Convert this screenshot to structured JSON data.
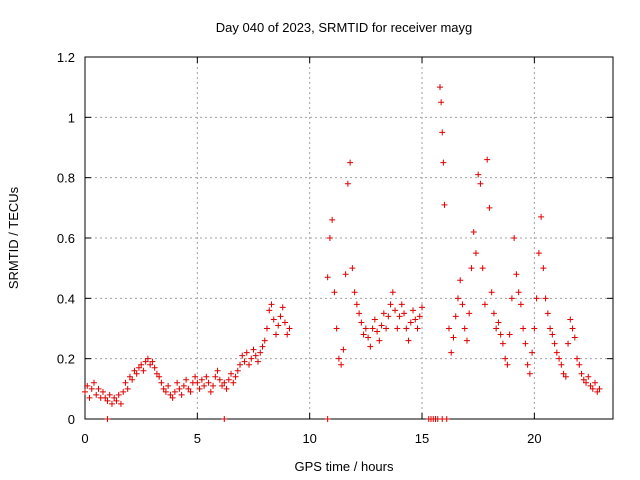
{
  "chart_data": {
    "type": "scatter",
    "title": "Day 040 of 2023, SRMTID for receiver mayg",
    "xlabel": "GPS time / hours",
    "ylabel": "SRMTID / TECUs",
    "xlim": [
      0,
      23.5
    ],
    "ylim": [
      0,
      1.2
    ],
    "xticks": [
      0,
      5,
      10,
      15,
      20
    ],
    "xtick_labels": [
      "0",
      "5",
      "10",
      "15",
      "20"
    ],
    "yticks": [
      0,
      0.2,
      0.4,
      0.6,
      0.8,
      1.0,
      1.2
    ],
    "ytick_labels": [
      "0",
      "0.2",
      "0.4",
      "0.6",
      "0.8",
      "1",
      "1.2"
    ],
    "grid": true,
    "marker": "+",
    "color": "#e00000",
    "series": [
      {
        "name": "SRMTID",
        "points": [
          [
            0.0,
            0.09
          ],
          [
            0.1,
            0.11
          ],
          [
            0.2,
            0.07
          ],
          [
            0.3,
            0.1
          ],
          [
            0.4,
            0.12
          ],
          [
            0.5,
            0.08
          ],
          [
            0.6,
            0.1
          ],
          [
            0.7,
            0.07
          ],
          [
            0.8,
            0.09
          ],
          [
            0.9,
            0.07
          ],
          [
            1.0,
            0.06
          ],
          [
            1.1,
            0.08
          ],
          [
            1.2,
            0.05
          ],
          [
            1.3,
            0.07
          ],
          [
            1.4,
            0.06
          ],
          [
            1.5,
            0.08
          ],
          [
            1.6,
            0.05
          ],
          [
            1.7,
            0.09
          ],
          [
            1.8,
            0.12
          ],
          [
            1.9,
            0.1
          ],
          [
            2.0,
            0.14
          ],
          [
            2.1,
            0.13
          ],
          [
            2.2,
            0.16
          ],
          [
            2.3,
            0.15
          ],
          [
            2.4,
            0.17
          ],
          [
            2.5,
            0.18
          ],
          [
            2.6,
            0.16
          ],
          [
            2.7,
            0.19
          ],
          [
            2.8,
            0.2
          ],
          [
            2.9,
            0.18
          ],
          [
            3.0,
            0.19
          ],
          [
            3.1,
            0.17
          ],
          [
            3.2,
            0.15
          ],
          [
            3.3,
            0.14
          ],
          [
            3.4,
            0.12
          ],
          [
            3.5,
            0.1
          ],
          [
            3.6,
            0.09
          ],
          [
            3.7,
            0.11
          ],
          [
            3.8,
            0.08
          ],
          [
            3.9,
            0.07
          ],
          [
            4.0,
            0.09
          ],
          [
            4.1,
            0.12
          ],
          [
            4.2,
            0.1
          ],
          [
            4.3,
            0.08
          ],
          [
            4.4,
            0.11
          ],
          [
            4.5,
            0.13
          ],
          [
            4.6,
            0.1
          ],
          [
            4.7,
            0.09
          ],
          [
            4.8,
            0.12
          ],
          [
            4.9,
            0.14
          ],
          [
            5.0,
            0.12
          ],
          [
            5.1,
            0.1
          ],
          [
            5.2,
            0.13
          ],
          [
            5.3,
            0.11
          ],
          [
            5.4,
            0.14
          ],
          [
            5.5,
            0.12
          ],
          [
            5.6,
            0.09
          ],
          [
            5.7,
            0.11
          ],
          [
            5.8,
            0.14
          ],
          [
            5.9,
            0.16
          ],
          [
            6.0,
            0.13
          ],
          [
            6.1,
            0.11
          ],
          [
            6.2,
            0.12
          ],
          [
            6.3,
            0.1
          ],
          [
            6.4,
            0.13
          ],
          [
            6.5,
            0.15
          ],
          [
            6.6,
            0.12
          ],
          [
            6.7,
            0.14
          ],
          [
            6.8,
            0.16
          ],
          [
            6.9,
            0.18
          ],
          [
            7.0,
            0.21
          ],
          [
            7.1,
            0.19
          ],
          [
            7.2,
            0.22
          ],
          [
            7.3,
            0.18
          ],
          [
            7.4,
            0.2
          ],
          [
            7.5,
            0.23
          ],
          [
            7.6,
            0.21
          ],
          [
            7.7,
            0.19
          ],
          [
            7.8,
            0.22
          ],
          [
            7.9,
            0.24
          ],
          [
            8.0,
            0.26
          ],
          [
            8.1,
            0.3
          ],
          [
            8.2,
            0.36
          ],
          [
            8.3,
            0.38
          ],
          [
            8.4,
            0.33
          ],
          [
            8.5,
            0.28
          ],
          [
            8.6,
            0.31
          ],
          [
            8.7,
            0.34
          ],
          [
            8.8,
            0.37
          ],
          [
            8.9,
            0.32
          ],
          [
            9.0,
            0.28
          ],
          [
            9.1,
            0.3
          ],
          [
            10.8,
            0.47
          ],
          [
            10.9,
            0.6
          ],
          [
            11.0,
            0.66
          ],
          [
            11.1,
            0.42
          ],
          [
            11.2,
            0.3
          ],
          [
            11.3,
            0.2
          ],
          [
            11.4,
            0.18
          ],
          [
            11.5,
            0.23
          ],
          [
            11.6,
            0.48
          ],
          [
            11.7,
            0.78
          ],
          [
            11.8,
            0.85
          ],
          [
            11.9,
            0.5
          ],
          [
            12.0,
            0.42
          ],
          [
            12.1,
            0.38
          ],
          [
            12.2,
            0.35
          ],
          [
            12.3,
            0.32
          ],
          [
            12.4,
            0.28
          ],
          [
            12.5,
            0.3
          ],
          [
            12.6,
            0.27
          ],
          [
            12.7,
            0.24
          ],
          [
            12.8,
            0.3
          ],
          [
            12.9,
            0.33
          ],
          [
            13.0,
            0.29
          ],
          [
            13.1,
            0.26
          ],
          [
            13.2,
            0.31
          ],
          [
            13.3,
            0.35
          ],
          [
            13.4,
            0.3
          ],
          [
            13.5,
            0.34
          ],
          [
            13.6,
            0.38
          ],
          [
            13.7,
            0.42
          ],
          [
            13.8,
            0.36
          ],
          [
            13.9,
            0.3
          ],
          [
            14.0,
            0.34
          ],
          [
            14.1,
            0.38
          ],
          [
            14.2,
            0.35
          ],
          [
            14.3,
            0.3
          ],
          [
            14.4,
            0.26
          ],
          [
            14.5,
            0.32
          ],
          [
            14.6,
            0.36
          ],
          [
            14.7,
            0.33
          ],
          [
            14.8,
            0.3
          ],
          [
            14.9,
            0.34
          ],
          [
            15.0,
            0.37
          ],
          [
            15.8,
            1.1
          ],
          [
            15.85,
            1.05
          ],
          [
            15.9,
            0.95
          ],
          [
            15.95,
            0.85
          ],
          [
            16.0,
            0.71
          ],
          [
            16.2,
            0.3
          ],
          [
            16.3,
            0.22
          ],
          [
            16.4,
            0.27
          ],
          [
            16.5,
            0.34
          ],
          [
            16.6,
            0.4
          ],
          [
            16.7,
            0.46
          ],
          [
            16.8,
            0.38
          ],
          [
            16.9,
            0.3
          ],
          [
            17.0,
            0.26
          ],
          [
            17.1,
            0.35
          ],
          [
            17.2,
            0.5
          ],
          [
            17.3,
            0.62
          ],
          [
            17.4,
            0.55
          ],
          [
            17.5,
            0.81
          ],
          [
            17.6,
            0.78
          ],
          [
            17.7,
            0.5
          ],
          [
            17.8,
            0.38
          ],
          [
            17.9,
            0.86
          ],
          [
            18.0,
            0.7
          ],
          [
            18.1,
            0.42
          ],
          [
            18.2,
            0.35
          ],
          [
            18.3,
            0.3
          ],
          [
            18.4,
            0.32
          ],
          [
            18.5,
            0.28
          ],
          [
            18.6,
            0.25
          ],
          [
            18.7,
            0.2
          ],
          [
            18.8,
            0.18
          ],
          [
            18.9,
            0.28
          ],
          [
            19.0,
            0.4
          ],
          [
            19.1,
            0.6
          ],
          [
            19.2,
            0.48
          ],
          [
            19.3,
            0.42
          ],
          [
            19.4,
            0.38
          ],
          [
            19.5,
            0.3
          ],
          [
            19.6,
            0.25
          ],
          [
            19.7,
            0.18
          ],
          [
            19.8,
            0.15
          ],
          [
            19.9,
            0.22
          ],
          [
            20.0,
            0.3
          ],
          [
            20.1,
            0.4
          ],
          [
            20.2,
            0.55
          ],
          [
            20.3,
            0.67
          ],
          [
            20.4,
            0.5
          ],
          [
            20.5,
            0.4
          ],
          [
            20.6,
            0.35
          ],
          [
            20.7,
            0.3
          ],
          [
            20.8,
            0.28
          ],
          [
            20.9,
            0.25
          ],
          [
            21.0,
            0.22
          ],
          [
            21.1,
            0.2
          ],
          [
            21.2,
            0.18
          ],
          [
            21.3,
            0.15
          ],
          [
            21.4,
            0.14
          ],
          [
            21.5,
            0.25
          ],
          [
            21.6,
            0.33
          ],
          [
            21.7,
            0.3
          ],
          [
            21.8,
            0.27
          ],
          [
            21.9,
            0.2
          ],
          [
            22.0,
            0.18
          ],
          [
            22.1,
            0.15
          ],
          [
            22.2,
            0.13
          ],
          [
            22.3,
            0.12
          ],
          [
            22.4,
            0.14
          ],
          [
            22.5,
            0.11
          ],
          [
            22.6,
            0.1
          ],
          [
            22.7,
            0.12
          ],
          [
            22.8,
            0.09
          ],
          [
            22.9,
            0.1
          ]
        ],
        "zero_points": [
          1.0,
          6.2,
          10.8,
          15.3,
          15.4,
          15.5,
          15.6,
          15.7,
          15.9,
          16.1
        ]
      }
    ]
  }
}
